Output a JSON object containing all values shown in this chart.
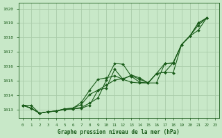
{
  "bg_color": "#c8e8c8",
  "grid_color": "#aaccaa",
  "line_color": "#1a5c1a",
  "marker_color": "#1a5c1a",
  "xlabel": "Graphe pression niveau de la mer (hPa)",
  "xlim": [
    -0.5,
    23.5
  ],
  "ylim": [
    1012.4,
    1020.4
  ],
  "yticks": [
    1013,
    1014,
    1015,
    1016,
    1017,
    1018,
    1019,
    1020
  ],
  "xticks": [
    0,
    1,
    2,
    3,
    4,
    5,
    6,
    7,
    8,
    9,
    10,
    11,
    12,
    13,
    14,
    15,
    16,
    17,
    18,
    19,
    20,
    21,
    22,
    23
  ],
  "series": [
    {
      "x": [
        0,
        1,
        2,
        3,
        4,
        5,
        6,
        7,
        8,
        9,
        10,
        11,
        12,
        13,
        14,
        15,
        16,
        17,
        18,
        19,
        20,
        21,
        22
      ],
      "y": [
        1013.3,
        1013.3,
        1012.75,
        1012.85,
        1012.9,
        1013.0,
        1013.05,
        1013.15,
        1013.45,
        1013.8,
        1015.05,
        1016.2,
        1016.15,
        1015.3,
        1014.9,
        1014.85,
        1015.5,
        1015.6,
        1015.55,
        1017.5,
        1018.1,
        1019.0,
        1019.35
      ]
    },
    {
      "x": [
        0,
        1,
        2,
        3,
        4,
        5,
        6,
        7,
        8,
        9,
        10,
        11,
        12,
        13,
        14,
        15,
        16,
        17,
        18,
        19,
        20,
        21,
        22
      ],
      "y": [
        1013.3,
        1013.1,
        1012.75,
        1012.85,
        1012.9,
        1013.05,
        1013.05,
        1013.1,
        1013.3,
        1014.35,
        1014.5,
        1015.8,
        1015.1,
        1015.4,
        1015.2,
        1014.85,
        1014.85,
        1016.2,
        1016.2,
        1017.5,
        1018.1,
        1018.85,
        1019.35
      ]
    },
    {
      "x": [
        0,
        1,
        2,
        3,
        4,
        5,
        6,
        7,
        8,
        9,
        10,
        11,
        12,
        13,
        14,
        15,
        16,
        17,
        18,
        19,
        20,
        21,
        22
      ],
      "y": [
        1013.3,
        1013.1,
        1012.75,
        1012.85,
        1012.9,
        1013.05,
        1013.1,
        1013.35,
        1014.05,
        1014.35,
        1014.7,
        1015.05,
        1015.15,
        1015.35,
        1015.1,
        1014.85,
        1015.5,
        1015.6,
        1016.25,
        1017.5,
        1018.1,
        1018.5,
        1019.35
      ]
    },
    {
      "x": [
        0,
        1,
        2,
        3,
        4,
        5,
        6,
        7,
        8,
        9,
        10,
        11,
        12,
        13,
        14,
        15,
        16,
        17,
        18,
        19,
        20,
        21,
        22
      ],
      "y": [
        1013.3,
        1013.1,
        1012.75,
        1012.85,
        1012.9,
        1013.05,
        1013.1,
        1013.5,
        1014.35,
        1015.1,
        1015.2,
        1015.35,
        1015.1,
        1014.9,
        1014.85,
        1014.85,
        1015.5,
        1016.2,
        1016.25,
        1017.5,
        1018.1,
        1019.0,
        1019.35
      ]
    }
  ]
}
